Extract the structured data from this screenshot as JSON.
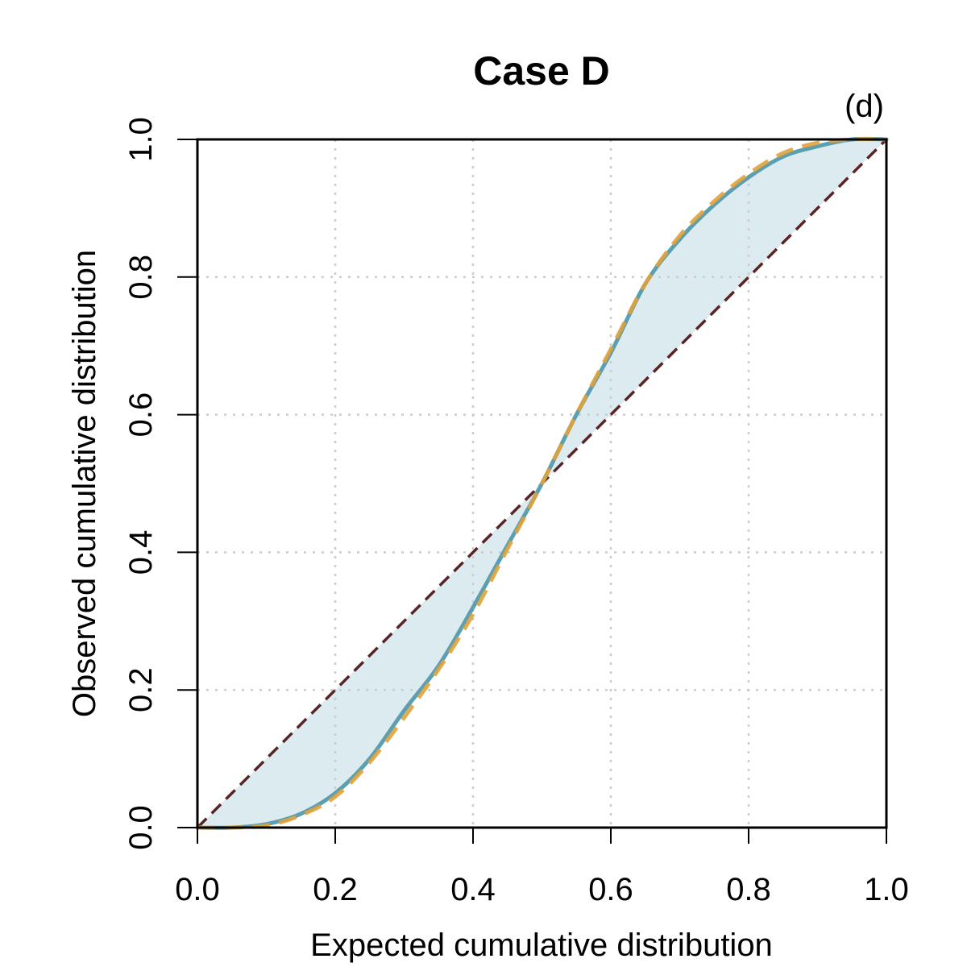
{
  "chart_data": {
    "type": "line",
    "title": "Case D",
    "panel_label": "(d)",
    "xlabel": "Expected cumulative distribution",
    "ylabel": "Observed cumulative distribution",
    "xlim": [
      0,
      1
    ],
    "ylim": [
      0,
      1
    ],
    "x_ticks": [
      "0.0",
      "0.2",
      "0.4",
      "0.6",
      "0.8",
      "1.0"
    ],
    "y_ticks": [
      "0.0",
      "0.2",
      "0.4",
      "0.6",
      "0.8",
      "1.0"
    ],
    "grid": true,
    "colors": {
      "observed": "#5b9fb0",
      "fitted": "#e0a23c",
      "reference": "#5a2325",
      "shade": "#dcebf0",
      "grid": "#cccccc"
    },
    "series": [
      {
        "style": "dashed",
        "x": [
          0,
          1
        ],
        "y": [
          0,
          1
        ]
      },
      {
        "style": "solid",
        "x": [
          0,
          0.05,
          0.1,
          0.15,
          0.2,
          0.25,
          0.3,
          0.35,
          0.4,
          0.45,
          0.5,
          0.55,
          0.6,
          0.65,
          0.7,
          0.75,
          0.8,
          0.85,
          0.9,
          0.95,
          1.0
        ],
        "y": [
          0,
          0,
          0.005,
          0.02,
          0.05,
          0.1,
          0.17,
          0.235,
          0.32,
          0.41,
          0.5,
          0.6,
          0.69,
          0.79,
          0.855,
          0.905,
          0.945,
          0.975,
          0.99,
          1.0,
          1.0
        ]
      },
      {
        "style": "dashed",
        "x": [
          0,
          0.05,
          0.1,
          0.15,
          0.2,
          0.25,
          0.3,
          0.35,
          0.4,
          0.45,
          0.5,
          0.55,
          0.6,
          0.65,
          0.7,
          0.75,
          0.8,
          0.85,
          0.9,
          0.95,
          1.0
        ],
        "y": [
          0,
          0,
          0.003,
          0.018,
          0.045,
          0.095,
          0.16,
          0.23,
          0.31,
          0.405,
          0.5,
          0.6,
          0.695,
          0.79,
          0.86,
          0.91,
          0.95,
          0.98,
          0.995,
          1.0,
          1.0
        ]
      }
    ]
  }
}
